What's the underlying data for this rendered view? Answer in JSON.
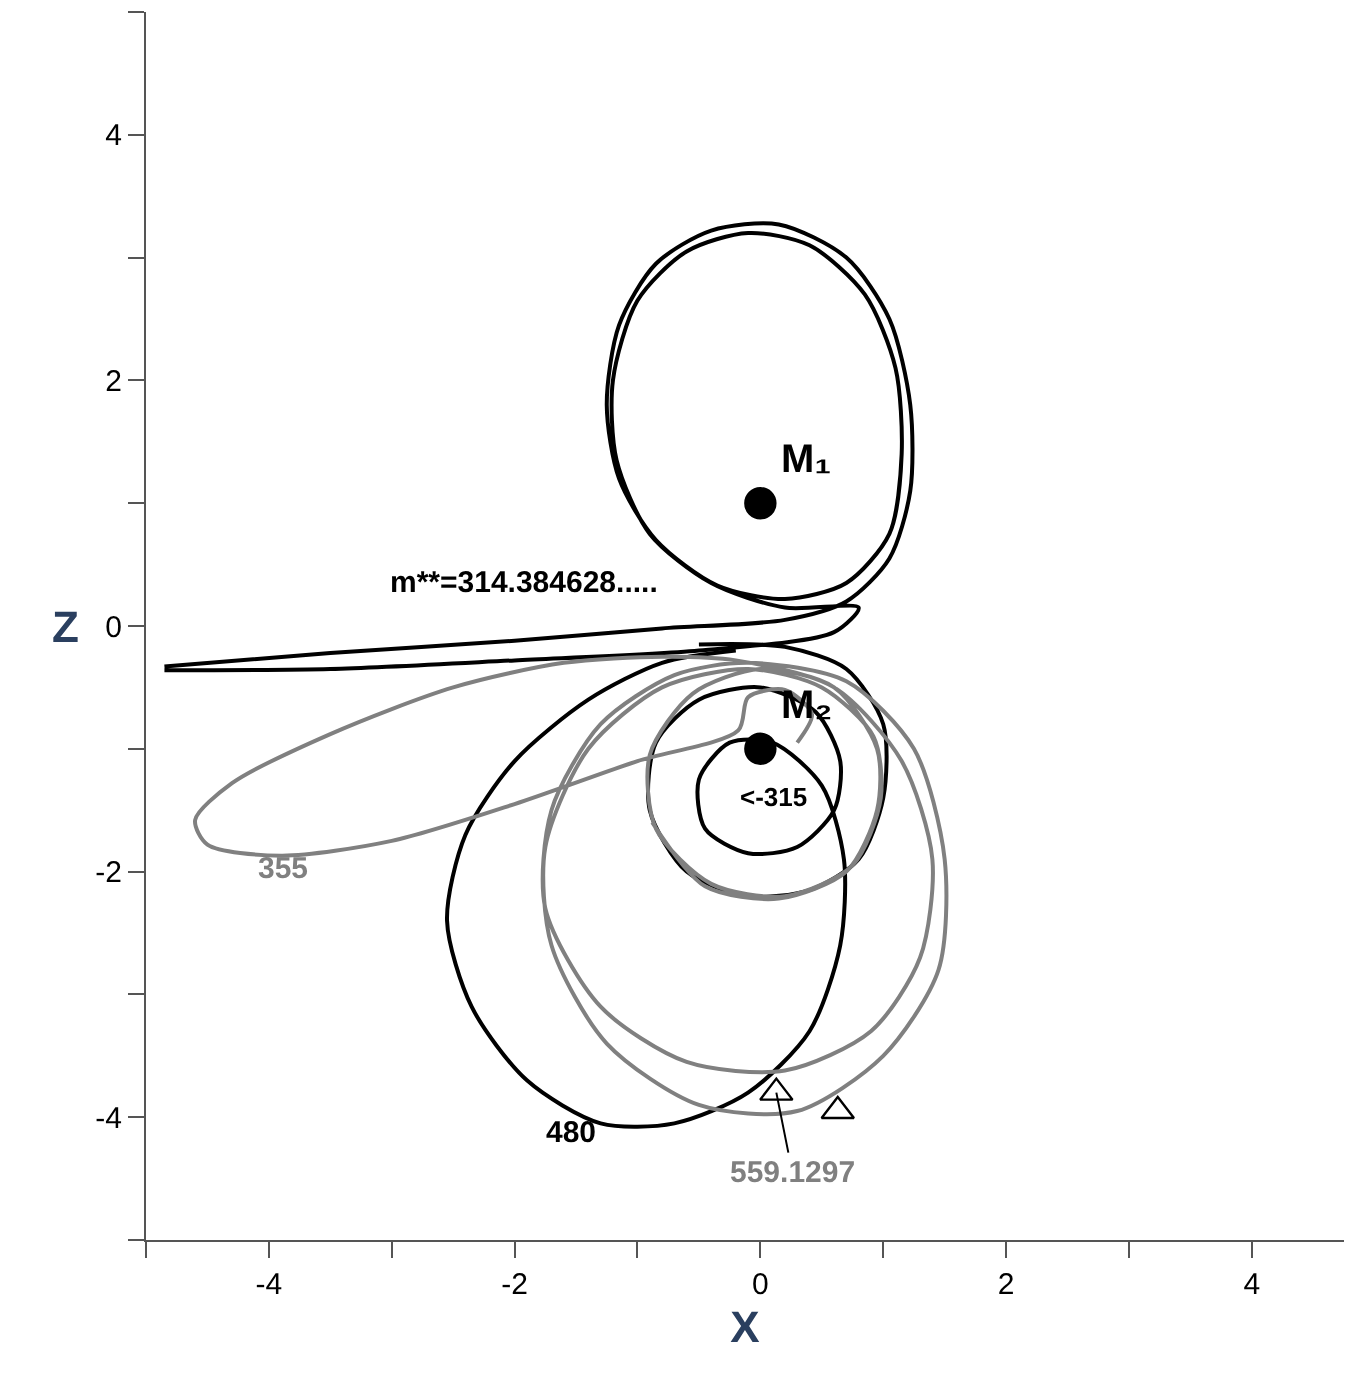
{
  "chart_data": {
    "type": "line",
    "xlabel": "X",
    "ylabel": "Z",
    "xlim": [
      -5,
      4.75
    ],
    "ylim": [
      -5,
      5
    ],
    "xticks": [
      {
        "value": -5,
        "label": null
      },
      -4,
      {
        "value": -3,
        "label": null
      },
      -2,
      {
        "value": -1,
        "label": null
      },
      0,
      {
        "value": 1,
        "label": null
      },
      2,
      {
        "value": 3,
        "label": null
      },
      4
    ],
    "yticks": [
      {
        "value": -5,
        "label": null
      },
      -4,
      {
        "value": -3,
        "label": null
      },
      -2,
      {
        "value": -1,
        "label": null
      },
      0,
      {
        "value": 1,
        "label": null
      },
      2,
      {
        "value": 3,
        "label": null
      },
      4,
      {
        "value": 5,
        "label": null
      }
    ],
    "legend": false,
    "line_style": "solid",
    "series": [
      {
        "color": "#000000",
        "x": [
          -4.85,
          -3.5,
          -2,
          -0.8,
          0.2,
          0.7,
          1.05,
          1.22,
          1.22,
          1.05,
          0.7,
          0.15,
          -0.4,
          -0.85,
          -1.15,
          -1.25,
          -1.15,
          -0.85,
          -0.35,
          0.2,
          0.7,
          1.05,
          1.15,
          1.1,
          0.85,
          0.4,
          -0.1,
          -0.6,
          -1.0,
          -1.2,
          -1.17,
          -0.9,
          -0.4,
          0.2,
          0.8,
          0.6,
          -0.5,
          -2,
          -3.5,
          -4.85
        ],
        "values": [
          -0.33,
          -0.22,
          -0.12,
          -0.02,
          0.05,
          0.2,
          0.55,
          1.1,
          1.8,
          2.5,
          3.0,
          3.27,
          3.22,
          2.95,
          2.45,
          1.8,
          1.2,
          0.7,
          0.33,
          0.22,
          0.35,
          0.75,
          1.4,
          2.1,
          2.7,
          3.1,
          3.2,
          3.05,
          2.65,
          2.0,
          1.35,
          0.75,
          0.35,
          0.15,
          0.15,
          -0.05,
          -0.2,
          -0.28,
          -0.35,
          -0.36
        ]
      },
      {
        "color": "#000000",
        "x": [
          -0.5,
          0.2,
          0.7,
          1.0,
          1.0,
          0.8,
          0.4,
          -0.1,
          -0.6,
          -0.9,
          -0.85,
          -0.5,
          0,
          0.45,
          0.65,
          0.6,
          0.3,
          -0.1,
          -0.45,
          -0.5,
          -0.25,
          0.1,
          0.5,
          0.68,
          0.65,
          0.4,
          -0.1,
          -0.7,
          -1.3,
          -1.9,
          -2.35,
          -2.55,
          -2.4,
          -2.0,
          -1.4,
          -0.8,
          -0.2
        ],
        "values": [
          -0.15,
          -0.17,
          -0.35,
          -0.8,
          -1.4,
          -1.9,
          -2.15,
          -2.2,
          -2.0,
          -1.5,
          -0.95,
          -0.6,
          -0.5,
          -0.7,
          -1.1,
          -1.5,
          -1.8,
          -1.85,
          -1.65,
          -1.25,
          -0.95,
          -0.95,
          -1.3,
          -1.9,
          -2.6,
          -3.3,
          -3.8,
          -4.05,
          -4.05,
          -3.7,
          -3.1,
          -2.4,
          -1.7,
          -1.1,
          -0.6,
          -0.3,
          -0.2
        ]
      },
      {
        "color": "#808080",
        "x": [
          0.3,
          0.42,
          0.2,
          -0.1,
          -0.18,
          -1.0,
          -2.0,
          -3.0,
          -3.9,
          -4.5,
          -4.6,
          -4.3,
          -3.5,
          -2.5,
          -1.6,
          -0.8,
          -0.2,
          0.6,
          1.15,
          1.4,
          1.3,
          0.9,
          0.2,
          -0.6,
          -1.3,
          -1.75,
          -1.7,
          -1.3,
          -0.7,
          -0.1,
          0.7,
          1.25,
          1.5,
          1.45,
          1.0,
          0.3,
          -0.5,
          -1.25,
          -1.7,
          -1.75,
          -1.4,
          -0.8,
          -0.1,
          0.5,
          0.92,
          0.98,
          0.75,
          0.2,
          -0.4,
          -0.85,
          -0.9,
          -0.55,
          0,
          0.6,
          0.95,
          0.95,
          0.7,
          0.15,
          -0.45,
          -0.88
        ],
        "values": [
          -0.95,
          -0.72,
          -0.52,
          -0.58,
          -0.85,
          -1.1,
          -1.45,
          -1.75,
          -1.87,
          -1.78,
          -1.58,
          -1.28,
          -0.88,
          -0.5,
          -0.3,
          -0.25,
          -0.28,
          -0.5,
          -1.1,
          -1.9,
          -2.7,
          -3.3,
          -3.62,
          -3.55,
          -3.1,
          -2.3,
          -1.5,
          -0.8,
          -0.4,
          -0.3,
          -0.45,
          -1.0,
          -1.9,
          -2.8,
          -3.5,
          -3.95,
          -3.9,
          -3.4,
          -2.6,
          -1.8,
          -1.0,
          -0.5,
          -0.35,
          -0.5,
          -0.9,
          -1.4,
          -1.95,
          -2.2,
          -2.1,
          -1.65,
          -1.05,
          -0.55,
          -0.35,
          -0.5,
          -1.0,
          -1.5,
          -2.0,
          -2.22,
          -2.12,
          -1.6
        ]
      },
      {
        "type": "scatter",
        "marker": "circle",
        "name": "M₁",
        "color": "#000000",
        "x": [
          0
        ],
        "values": [
          1
        ]
      },
      {
        "type": "scatter",
        "marker": "circle",
        "name": "M₂",
        "color": "#000000",
        "x": [
          0
        ],
        "values": [
          -1
        ]
      },
      {
        "type": "scatter",
        "marker": "triangle",
        "color": "#000000",
        "x": [
          0.13,
          0.63
        ],
        "values": [
          -3.8,
          -3.95
        ]
      }
    ],
    "annotations": [
      "m**=314.384628.....",
      "<-315",
      "355",
      "480",
      {
        "text": "559.1297",
        "x": 0.13,
        "y": -3.8
      }
    ]
  }
}
